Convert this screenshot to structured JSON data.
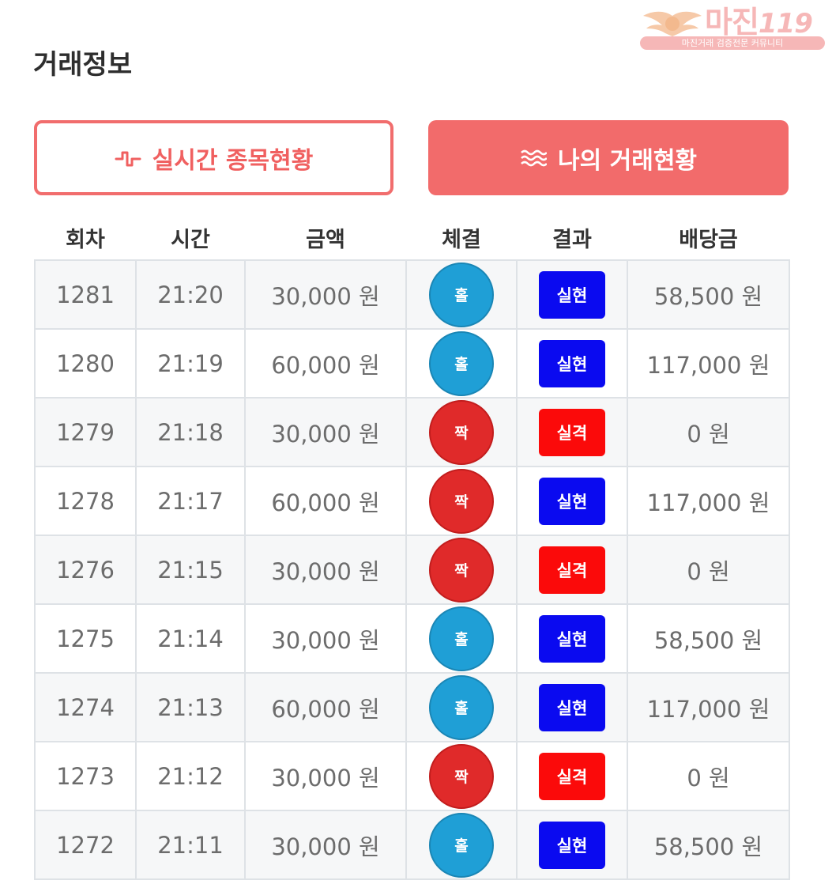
{
  "watermark": {
    "brand": "마진",
    "brand_suffix": "119",
    "tagline": "마진거래 검증전문 커뮤니티"
  },
  "page": {
    "title": "거래정보"
  },
  "tabs": [
    {
      "label": "실시간 종목현황",
      "icon": "pulse-icon",
      "active": false
    },
    {
      "label": "나의 거래현황",
      "icon": "waves-icon",
      "active": true
    }
  ],
  "table": {
    "headers": [
      "회차",
      "시간",
      "금액",
      "체결",
      "결과",
      "배당금"
    ],
    "rows": [
      {
        "round": "1281",
        "time": "21:20",
        "amount": "30,000 원",
        "pick": "홀",
        "result": "실현",
        "payout": "58,500 원"
      },
      {
        "round": "1280",
        "time": "21:19",
        "amount": "60,000 원",
        "pick": "홀",
        "result": "실현",
        "payout": "117,000 원"
      },
      {
        "round": "1279",
        "time": "21:18",
        "amount": "30,000 원",
        "pick": "짝",
        "result": "실격",
        "payout": "0 원"
      },
      {
        "round": "1278",
        "time": "21:17",
        "amount": "60,000 원",
        "pick": "짝",
        "result": "실현",
        "payout": "117,000 원"
      },
      {
        "round": "1276",
        "time": "21:15",
        "amount": "30,000 원",
        "pick": "짝",
        "result": "실격",
        "payout": "0 원"
      },
      {
        "round": "1275",
        "time": "21:14",
        "amount": "30,000 원",
        "pick": "홀",
        "result": "실현",
        "payout": "58,500 원"
      },
      {
        "round": "1274",
        "time": "21:13",
        "amount": "60,000 원",
        "pick": "홀",
        "result": "실현",
        "payout": "117,000 원"
      },
      {
        "round": "1273",
        "time": "21:12",
        "amount": "30,000 원",
        "pick": "짝",
        "result": "실격",
        "payout": "0 원"
      },
      {
        "round": "1272",
        "time": "21:11",
        "amount": "30,000 원",
        "pick": "홀",
        "result": "실현",
        "payout": "58,500 원"
      }
    ]
  },
  "colors": {
    "odd_ball": "#1f9fd6",
    "odd_ball_border": "#1a86b5",
    "even_ball": "#e02a2a",
    "even_ball_border": "#c21d1d",
    "win_badge": "#0a0af0",
    "lose_badge": "#fb0a0a",
    "accent": "#f26b6b"
  }
}
